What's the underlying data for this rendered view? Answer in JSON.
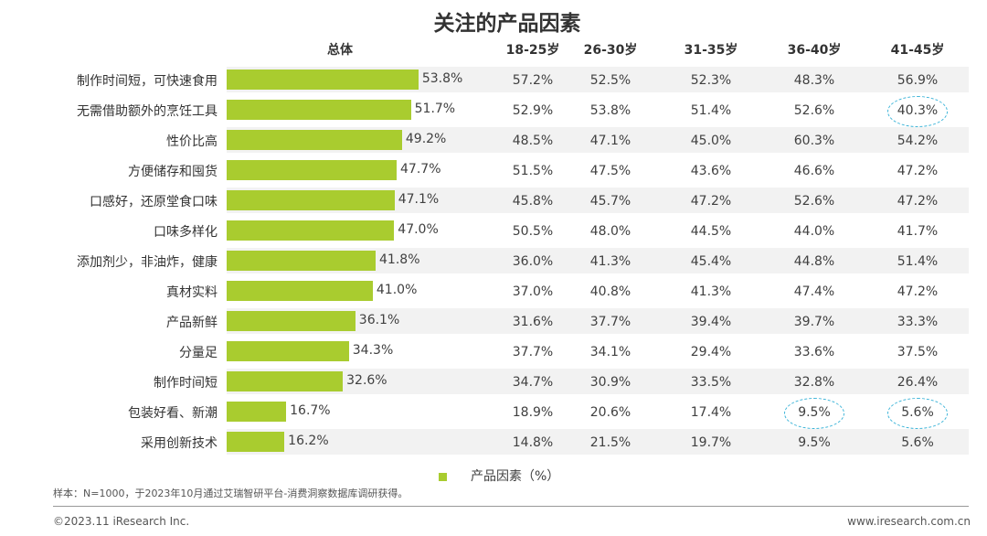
{
  "chart_data": {
    "type": "table",
    "title": "关注的产品因素",
    "headers": [
      "总体",
      "18-25岁",
      "26-30岁",
      "31-35岁",
      "36-40岁",
      "41-45岁"
    ],
    "categories": [
      "制作时间短，可快速食用",
      "无需借助额外的烹饪工具",
      "性价比高",
      "方便储存和囤货",
      "口感好，还原堂食口味",
      "口味多样化",
      "添加剂少，非油炸，健康",
      "真材实料",
      "产品新鲜",
      "分量足",
      "制作时间短",
      "包装好看、新潮",
      "采用创新技术"
    ],
    "series": [
      {
        "name": "总体",
        "values": [
          "53.8%",
          "51.7%",
          "49.2%",
          "47.7%",
          "47.1%",
          "47.0%",
          "41.8%",
          "41.0%",
          "36.1%",
          "34.3%",
          "32.6%",
          "16.7%",
          "16.2%"
        ]
      },
      {
        "name": "18-25岁",
        "values": [
          "57.2%",
          "52.9%",
          "48.5%",
          "51.5%",
          "45.8%",
          "50.5%",
          "36.0%",
          "37.0%",
          "31.6%",
          "37.7%",
          "34.7%",
          "18.9%",
          "14.8%"
        ]
      },
      {
        "name": "26-30岁",
        "values": [
          "52.5%",
          "53.8%",
          "47.1%",
          "47.5%",
          "45.7%",
          "48.0%",
          "41.3%",
          "40.8%",
          "37.7%",
          "34.1%",
          "30.9%",
          "20.6%",
          "21.5%"
        ]
      },
      {
        "name": "31-35岁",
        "values": [
          "52.3%",
          "51.4%",
          "45.0%",
          "43.6%",
          "47.2%",
          "44.5%",
          "45.4%",
          "41.3%",
          "39.4%",
          "29.4%",
          "33.5%",
          "17.4%",
          "19.7%"
        ]
      },
      {
        "name": "36-40岁",
        "values": [
          "48.3%",
          "52.6%",
          "60.3%",
          "46.6%",
          "52.6%",
          "44.0%",
          "44.8%",
          "47.4%",
          "39.7%",
          "33.6%",
          "32.8%",
          "9.5%",
          "9.5%"
        ]
      },
      {
        "name": "41-45岁",
        "values": [
          "56.9%",
          "40.3%",
          "54.2%",
          "47.2%",
          "47.2%",
          "41.7%",
          "51.4%",
          "47.2%",
          "33.3%",
          "37.5%",
          "26.4%",
          "5.6%",
          "5.6%"
        ]
      }
    ],
    "bar_values": [
      53.8,
      51.7,
      49.2,
      47.7,
      47.1,
      47.0,
      41.8,
      41.0,
      36.1,
      34.3,
      32.6,
      16.7,
      16.2
    ],
    "highlights": [
      {
        "row": 1,
        "col": 5
      },
      {
        "row": 11,
        "col": 4
      },
      {
        "row": 11,
        "col": 5
      }
    ],
    "legend": "产品因素（%）",
    "legend_position": "bottom",
    "colors": {
      "bar": "#a9cc2f",
      "highlight": "#3cb4d8",
      "stripe": "#f2f2f2"
    }
  },
  "note": "样本：N=1000，于2023年10月通过艾瑞智研平台-消费洞察数据库调研获得。",
  "footer_left": "©2023.11 iResearch Inc.",
  "footer_right": "www.iresearch.com.cn"
}
